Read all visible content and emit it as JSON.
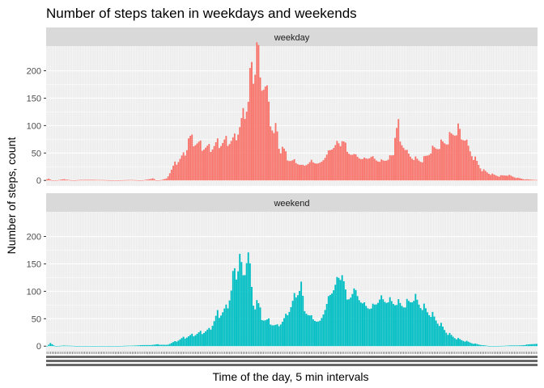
{
  "chart_data": {
    "type": "bar",
    "title": "Number of steps taken in weekdays and weekends",
    "xlabel": "Time of the day, 5 min intervals",
    "ylabel": "Number of steps, count",
    "ylim": [
      -10,
      245
    ],
    "yticks": [
      0,
      50,
      100,
      150,
      200
    ],
    "grid": true,
    "x_unit": "5-minute interval index (0 = 00:00, 287 = 23:55)",
    "series": [
      {
        "name": "weekday",
        "color": "#F8766D",
        "anchors": [
          [
            0,
            2
          ],
          [
            1,
            3
          ],
          [
            3,
            0
          ],
          [
            5,
            0
          ],
          [
            10,
            2
          ],
          [
            15,
            0
          ],
          [
            20,
            1
          ],
          [
            30,
            1
          ],
          [
            40,
            0
          ],
          [
            50,
            1
          ],
          [
            55,
            0
          ],
          [
            60,
            2
          ],
          [
            62,
            4
          ],
          [
            64,
            0
          ],
          [
            66,
            0
          ],
          [
            70,
            3
          ],
          [
            75,
            30
          ],
          [
            80,
            45
          ],
          [
            82,
            60
          ],
          [
            85,
            75
          ],
          [
            90,
            65
          ],
          [
            95,
            60
          ],
          [
            100,
            70
          ],
          [
            105,
            75
          ],
          [
            110,
            80
          ],
          [
            115,
            125
          ],
          [
            118,
            160
          ],
          [
            120,
            200
          ],
          [
            122,
            230
          ],
          [
            124,
            210
          ],
          [
            126,
            185
          ],
          [
            128,
            170
          ],
          [
            130,
            130
          ],
          [
            133,
            100
          ],
          [
            135,
            80
          ],
          [
            137,
            60
          ],
          [
            140,
            45
          ],
          [
            145,
            40
          ],
          [
            150,
            30
          ],
          [
            155,
            40
          ],
          [
            160,
            35
          ],
          [
            165,
            60
          ],
          [
            170,
            80
          ],
          [
            172,
            75
          ],
          [
            175,
            60
          ],
          [
            180,
            55
          ],
          [
            185,
            45
          ],
          [
            190,
            50
          ],
          [
            195,
            40
          ],
          [
            200,
            45
          ],
          [
            203,
            55
          ],
          [
            206,
            95
          ],
          [
            210,
            60
          ],
          [
            215,
            45
          ],
          [
            220,
            40
          ],
          [
            225,
            60
          ],
          [
            230,
            70
          ],
          [
            235,
            80
          ],
          [
            240,
            100
          ],
          [
            242,
            95
          ],
          [
            245,
            75
          ],
          [
            250,
            45
          ],
          [
            255,
            20
          ],
          [
            260,
            12
          ],
          [
            265,
            8
          ],
          [
            270,
            10
          ],
          [
            275,
            5
          ],
          [
            280,
            2
          ],
          [
            287,
            1
          ]
        ]
      },
      {
        "name": "weekend",
        "color": "#00BFC4",
        "anchors": [
          [
            0,
            0
          ],
          [
            2,
            5
          ],
          [
            5,
            0
          ],
          [
            10,
            1
          ],
          [
            20,
            0
          ],
          [
            30,
            0
          ],
          [
            40,
            0
          ],
          [
            50,
            1
          ],
          [
            60,
            2
          ],
          [
            65,
            3
          ],
          [
            70,
            2
          ],
          [
            75,
            8
          ],
          [
            80,
            15
          ],
          [
            85,
            20
          ],
          [
            90,
            25
          ],
          [
            95,
            30
          ],
          [
            100,
            60
          ],
          [
            105,
            70
          ],
          [
            108,
            110
          ],
          [
            110,
            135
          ],
          [
            112,
            160
          ],
          [
            114,
            130
          ],
          [
            116,
            150
          ],
          [
            118,
            165
          ],
          [
            120,
            100
          ],
          [
            122,
            80
          ],
          [
            125,
            60
          ],
          [
            130,
            50
          ],
          [
            135,
            40
          ],
          [
            140,
            60
          ],
          [
            145,
            100
          ],
          [
            148,
            120
          ],
          [
            150,
            80
          ],
          [
            155,
            60
          ],
          [
            160,
            50
          ],
          [
            165,
            100
          ],
          [
            170,
            140
          ],
          [
            172,
            145
          ],
          [
            175,
            90
          ],
          [
            180,
            120
          ],
          [
            185,
            90
          ],
          [
            190,
            80
          ],
          [
            195,
            100
          ],
          [
            200,
            95
          ],
          [
            205,
            90
          ],
          [
            210,
            85
          ],
          [
            215,
            100
          ],
          [
            220,
            80
          ],
          [
            225,
            65
          ],
          [
            230,
            45
          ],
          [
            235,
            25
          ],
          [
            240,
            15
          ],
          [
            245,
            10
          ],
          [
            250,
            5
          ],
          [
            255,
            2
          ],
          [
            260,
            0
          ],
          [
            270,
            1
          ],
          [
            280,
            2
          ],
          [
            287,
            5
          ]
        ]
      }
    ]
  }
}
